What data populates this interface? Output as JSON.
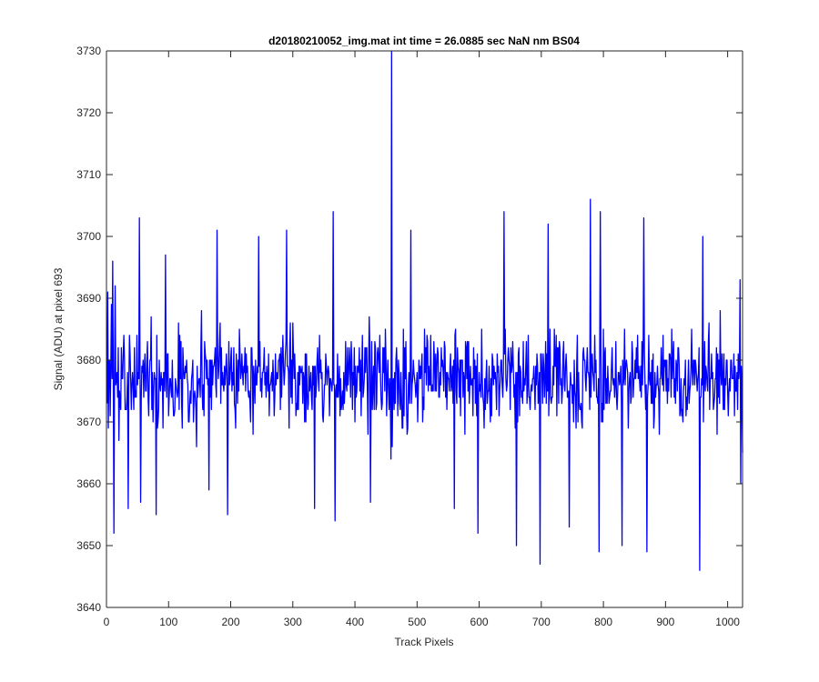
{
  "chart_data": {
    "type": "line",
    "title": "d20180210052_img.mat int time = 26.0885 sec  NaN nm BS04",
    "xlabel": "Track Pixels",
    "ylabel": "Signal (ADU) at pixel 693",
    "xlim": [
      0,
      1024
    ],
    "ylim": [
      3640,
      3730
    ],
    "xticks": [
      0,
      100,
      200,
      300,
      400,
      500,
      600,
      700,
      800,
      900,
      1000
    ],
    "yticks": [
      3640,
      3650,
      3660,
      3670,
      3680,
      3690,
      3700,
      3710,
      3720,
      3730
    ],
    "grid": false,
    "box": true,
    "series_color": "#0000ff",
    "series": [
      {
        "noise_model": {
          "n_points": 1024,
          "x_start": 1,
          "mean": 3677,
          "std": 7.5,
          "min": 3646,
          "max": 3706,
          "seed": 693
        },
        "highlights": [
          {
            "x": 2,
            "y": 3691
          },
          {
            "x": 4,
            "y": 3680
          },
          {
            "x": 6,
            "y": 3671
          },
          {
            "x": 8,
            "y": 3689
          },
          {
            "x": 10,
            "y": 3696
          },
          {
            "x": 12,
            "y": 3652
          },
          {
            "x": 14,
            "y": 3692
          },
          {
            "x": 20,
            "y": 3667
          },
          {
            "x": 35,
            "y": 3656
          },
          {
            "x": 53,
            "y": 3703
          },
          {
            "x": 55,
            "y": 3657
          },
          {
            "x": 80,
            "y": 3655
          },
          {
            "x": 95,
            "y": 3697
          },
          {
            "x": 165,
            "y": 3659
          },
          {
            "x": 178,
            "y": 3701
          },
          {
            "x": 195,
            "y": 3655
          },
          {
            "x": 245,
            "y": 3700
          },
          {
            "x": 290,
            "y": 3701
          },
          {
            "x": 335,
            "y": 3656
          },
          {
            "x": 365,
            "y": 3704
          },
          {
            "x": 368,
            "y": 3654
          },
          {
            "x": 425,
            "y": 3657
          },
          {
            "x": 458,
            "y": 3664
          },
          {
            "x": 459,
            "y": 3730
          },
          {
            "x": 460,
            "y": 3666
          },
          {
            "x": 490,
            "y": 3701
          },
          {
            "x": 560,
            "y": 3656
          },
          {
            "x": 598,
            "y": 3652
          },
          {
            "x": 640,
            "y": 3704
          },
          {
            "x": 660,
            "y": 3650
          },
          {
            "x": 698,
            "y": 3647
          },
          {
            "x": 711,
            "y": 3702
          },
          {
            "x": 745,
            "y": 3653
          },
          {
            "x": 779,
            "y": 3706
          },
          {
            "x": 793,
            "y": 3649
          },
          {
            "x": 795,
            "y": 3704
          },
          {
            "x": 830,
            "y": 3650
          },
          {
            "x": 865,
            "y": 3703
          },
          {
            "x": 870,
            "y": 3649
          },
          {
            "x": 955,
            "y": 3646
          },
          {
            "x": 960,
            "y": 3700
          },
          {
            "x": 1020,
            "y": 3693
          },
          {
            "x": 1021,
            "y": 3660
          },
          {
            "x": 1024,
            "y": 3665
          }
        ]
      }
    ]
  }
}
